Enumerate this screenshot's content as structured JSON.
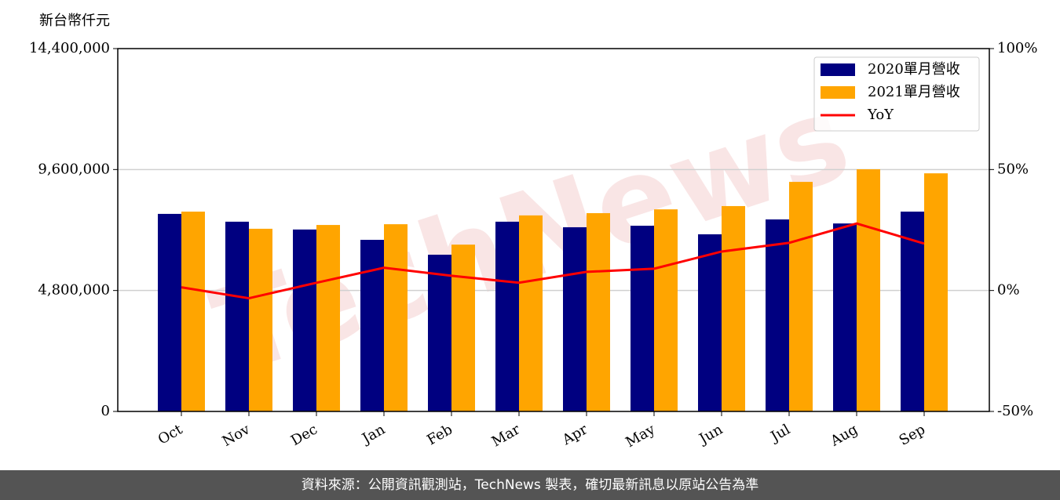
{
  "chart_data": {
    "type": "bar",
    "y_label": "新台幣仟元",
    "categories": [
      "Oct",
      "Nov",
      "Dec",
      "Jan",
      "Feb",
      "Mar",
      "Apr",
      "May",
      "Jun",
      "Jul",
      "Aug",
      "Sep"
    ],
    "series": [
      {
        "name": "2020單月營收",
        "color": "#000080",
        "type": "bar",
        "values": [
          7840000,
          7530000,
          7220000,
          6810000,
          6220000,
          7530000,
          7310000,
          7370000,
          7030000,
          7620000,
          7460000,
          7930000
        ]
      },
      {
        "name": "2021單月營收",
        "color": "#ffa500",
        "type": "bar",
        "values": [
          7930000,
          7250000,
          7400000,
          7430000,
          6620000,
          7780000,
          7870000,
          8020000,
          8150000,
          9110000,
          9610000,
          9450000
        ]
      },
      {
        "name": "YoY",
        "color": "#ff0000",
        "type": "line",
        "axis": "y2",
        "values": [
          1.3,
          -3.2,
          3.2,
          9.4,
          6.1,
          3.2,
          7.7,
          9.0,
          16.1,
          19.7,
          27.7,
          19.4
        ]
      }
    ],
    "ylim": [
      0,
      14400000
    ],
    "yticks": [
      0,
      {
        "value": 4800000,
        "label": "4,800,000"
      },
      {
        "value": 9600000,
        "label": "9,600,000"
      },
      {
        "value": 14400000,
        "label": "14,400,000"
      }
    ],
    "y2lim": [
      -50,
      100
    ],
    "y2ticks": [
      {
        "value": -50,
        "label": "-50%"
      },
      {
        "value": 0,
        "label": "0%"
      },
      {
        "value": 50,
        "label": "50%"
      },
      {
        "value": 100,
        "label": "100%"
      }
    ],
    "grid": true,
    "legend": "upper right"
  },
  "watermark": "TechNews",
  "footer": "資料來源：公開資訊觀測站，TechNews 製表，確切最新訊息以原站公告為準"
}
